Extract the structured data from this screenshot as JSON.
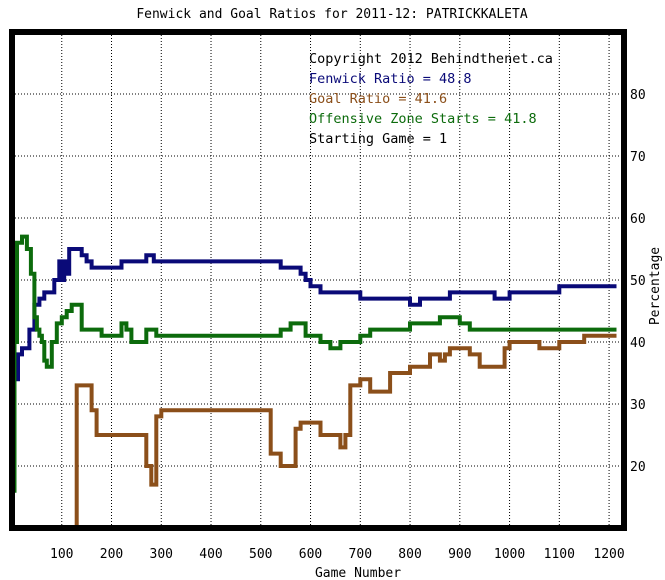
{
  "chart_data": {
    "type": "line",
    "title": "Fenwick and Goal Ratios for 2011-12: PATRICKKALETA",
    "xlabel": "Game Number",
    "ylabel": "Percentage",
    "xlim": [
      0,
      1230
    ],
    "ylim": [
      10,
      90
    ],
    "x_ticks": [
      100,
      200,
      300,
      400,
      500,
      600,
      700,
      800,
      900,
      1000,
      1100,
      1200
    ],
    "y_ticks": [
      20,
      30,
      40,
      50,
      60,
      70,
      80
    ],
    "grid": true,
    "legend_placement": "top-right",
    "legend": [
      {
        "text": "Copyright 2012 Behindthenet.ca",
        "color": "#000000"
      },
      {
        "text": "Fenwick Ratio = 48.8",
        "color": "#0a0a78"
      },
      {
        "text": "Goal Ratio = 41.6",
        "color": "#8b4f1a"
      },
      {
        "text": "Offensive Zone Starts = 41.8",
        "color": "#0c6b0c"
      },
      {
        "text": "Starting Game = 1",
        "color": "#000000"
      }
    ],
    "series": [
      {
        "key": "fenwick",
        "color": "#0a0a78",
        "x": [
          2,
          5,
          8,
          12,
          20,
          35,
          45,
          55,
          65,
          75,
          85,
          90,
          95,
          100,
          105,
          110,
          115,
          120,
          125,
          130,
          140,
          150,
          160,
          170,
          180,
          200,
          220,
          240,
          260,
          270,
          280,
          285,
          290,
          300,
          320,
          350,
          400,
          450,
          500,
          540,
          560,
          580,
          590,
          600,
          620,
          650,
          680,
          700,
          720,
          750,
          780,
          800,
          820,
          850,
          880,
          900,
          920,
          950,
          960,
          970,
          980,
          1000,
          1030,
          1060,
          1100,
          1150,
          1200,
          1215
        ],
        "y": [
          21,
          34,
          34,
          38,
          39,
          42,
          46,
          47,
          48,
          48,
          50,
          50,
          53,
          50,
          53,
          51,
          55,
          55,
          55,
          55,
          54,
          53,
          52,
          52,
          52,
          52,
          53,
          53,
          53,
          54,
          54,
          53,
          53,
          53,
          53,
          53,
          53,
          53,
          53,
          52,
          52,
          51,
          50,
          49,
          48,
          48,
          48,
          47,
          47,
          47,
          47,
          46,
          47,
          47,
          48,
          48,
          48,
          48,
          48,
          47,
          47,
          48,
          48,
          48,
          49,
          49,
          49,
          49
        ]
      },
      {
        "key": "goal",
        "color": "#8b4f1a",
        "x": [
          5,
          20,
          40,
          60,
          80,
          95,
          110,
          120,
          123,
          125,
          130,
          140,
          150,
          160,
          170,
          180,
          200,
          220,
          240,
          250,
          260,
          270,
          280,
          285,
          290,
          300,
          350,
          400,
          450,
          490,
          500,
          520,
          540,
          550,
          560,
          570,
          580,
          600,
          620,
          640,
          660,
          670,
          680,
          700,
          710,
          720,
          740,
          760,
          780,
          800,
          840,
          860,
          870,
          880,
          900,
          920,
          940,
          950,
          970,
          980,
          990,
          1000,
          1040,
          1060,
          1100,
          1150,
          1215
        ],
        "y": [
          null,
          null,
          null,
          null,
          null,
          null,
          null,
          null,
          10,
          10,
          33,
          33,
          33,
          29,
          25,
          25,
          25,
          25,
          25,
          25,
          25,
          20,
          17,
          17,
          28,
          29,
          29,
          29,
          29,
          29,
          29,
          22,
          20,
          20,
          20,
          26,
          27,
          27,
          25,
          25,
          23,
          25,
          33,
          34,
          34,
          32,
          32,
          35,
          35,
          36,
          38,
          37,
          38,
          39,
          39,
          38,
          36,
          36,
          36,
          36,
          39,
          40,
          40,
          39,
          40,
          41,
          41
        ]
      },
      {
        "key": "ozs",
        "color": "#0c6b0c",
        "x": [
          2,
          5,
          10,
          15,
          20,
          25,
          30,
          38,
          45,
          50,
          55,
          60,
          65,
          70,
          80,
          90,
          100,
          110,
          120,
          130,
          140,
          150,
          160,
          180,
          200,
          220,
          230,
          240,
          250,
          270,
          290,
          300,
          350,
          400,
          450,
          500,
          510,
          520,
          540,
          560,
          570,
          580,
          590,
          600,
          620,
          640,
          650,
          660,
          700,
          720,
          740,
          780,
          800,
          820,
          840,
          860,
          870,
          880,
          900,
          920,
          960,
          980,
          1000,
          1040,
          1060,
          1100,
          1150,
          1200,
          1215
        ],
        "y": [
          16,
          40,
          56,
          56,
          57,
          57,
          55,
          51,
          44,
          42,
          41,
          40,
          37,
          36,
          40,
          43,
          44,
          45,
          46,
          46,
          42,
          42,
          42,
          41,
          41,
          43,
          42,
          40,
          40,
          42,
          41,
          41,
          41,
          41,
          41,
          41,
          41,
          41,
          42,
          43,
          43,
          43,
          41,
          41,
          40,
          39,
          39,
          40,
          41,
          42,
          42,
          42,
          43,
          43,
          43,
          44,
          44,
          44,
          43,
          42,
          42,
          42,
          42,
          42,
          42,
          42,
          42,
          42,
          42
        ]
      }
    ]
  }
}
